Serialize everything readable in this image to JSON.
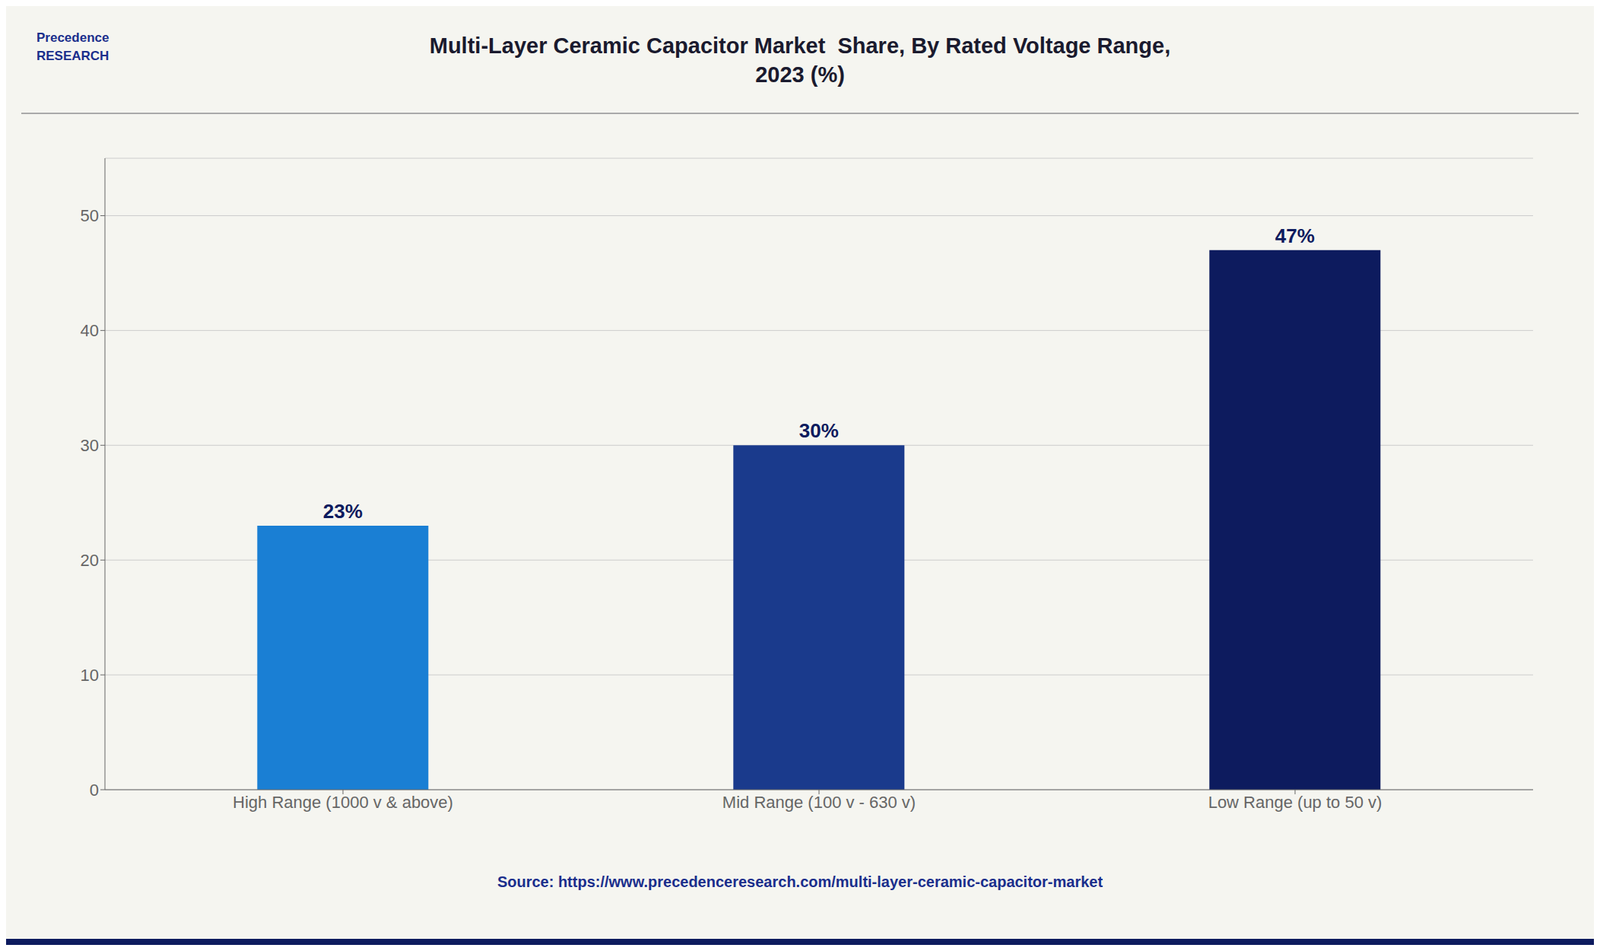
{
  "chart_data": {
    "type": "bar",
    "title": "Multi-Layer Ceramic Capacitor Market  Share, By Rated Voltage Range,\n2023 (%)",
    "categories": [
      "High Range (1000 v & above)",
      "Mid Range (100 v - 630 v)",
      "Low Range (up to 50 v)"
    ],
    "values": [
      23,
      30,
      47
    ],
    "value_labels": [
      "23%",
      "30%",
      "47%"
    ],
    "data_labels": true,
    "colors": [
      "#1a7fd4",
      "#1a3a8c",
      "#0d1b5e"
    ],
    "ylim": [
      0,
      55
    ],
    "yticks": [
      0,
      10,
      20,
      30,
      40,
      50
    ],
    "grid": true,
    "annotations": [
      "Precedence\nRESEARCH",
      "Source: https://www.precedenceresearch.com/multi-layer-ceramic-capacitor-market"
    ]
  }
}
